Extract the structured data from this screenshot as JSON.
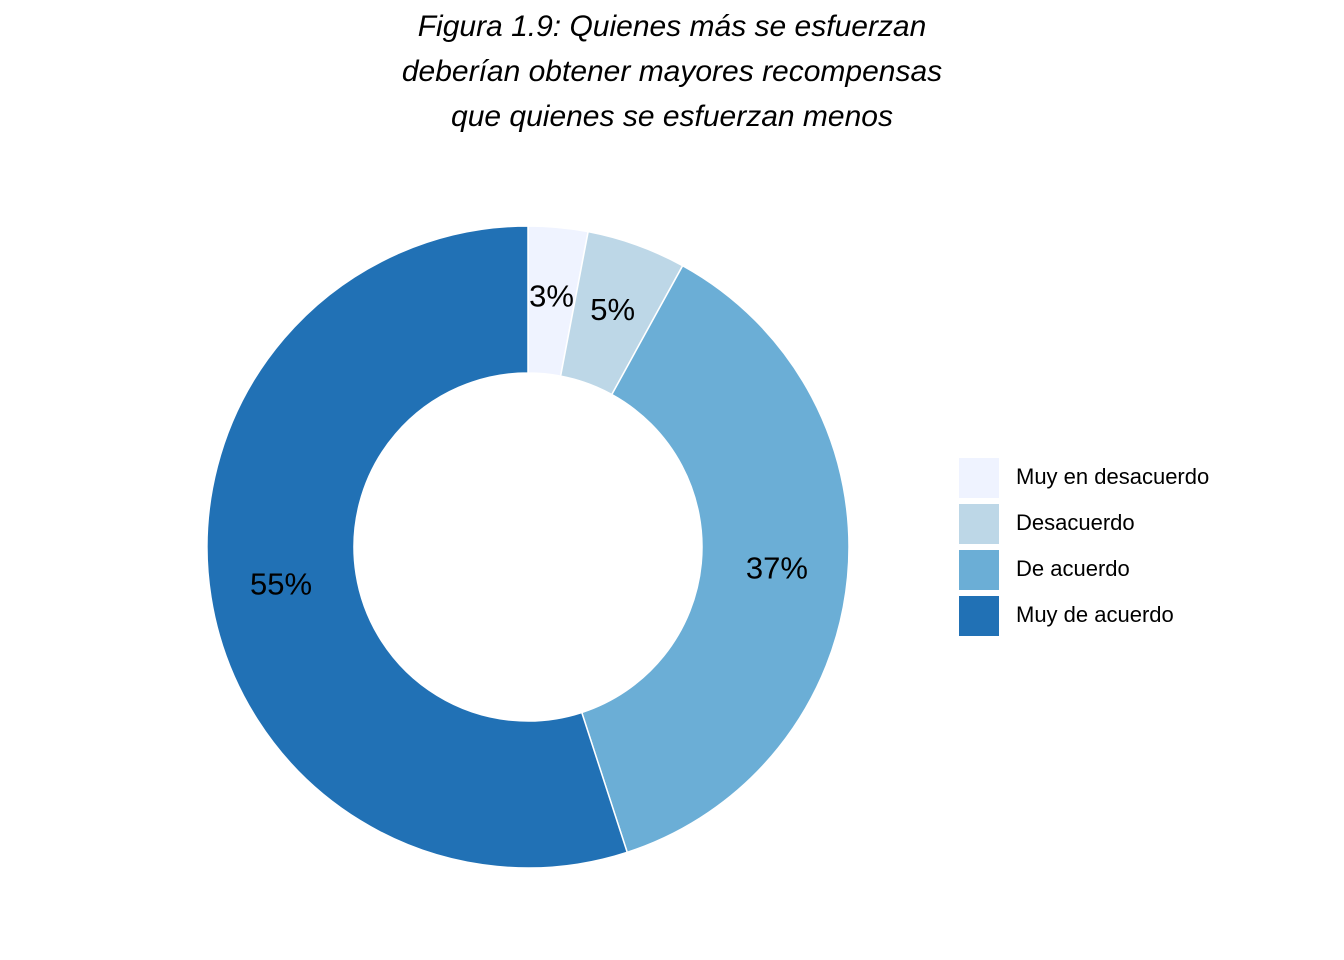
{
  "chart_data": {
    "type": "pie",
    "title": "Figura 1.9: Quienes más se esfuerzan\ndeberían obtener mayores recompensas\nque quienes se esfuerzan menos",
    "categories": [
      "Muy en desacuerdo",
      "Desacuerdo",
      "De acuerdo",
      "Muy de acuerdo"
    ],
    "values": [
      3,
      5,
      37,
      55
    ],
    "labels": [
      "3%",
      "5%",
      "37%",
      "55%"
    ],
    "colors": [
      "#eff3ff",
      "#bdd7e7",
      "#6baed6",
      "#2171b5"
    ],
    "donut": true,
    "legend_position": "right"
  }
}
